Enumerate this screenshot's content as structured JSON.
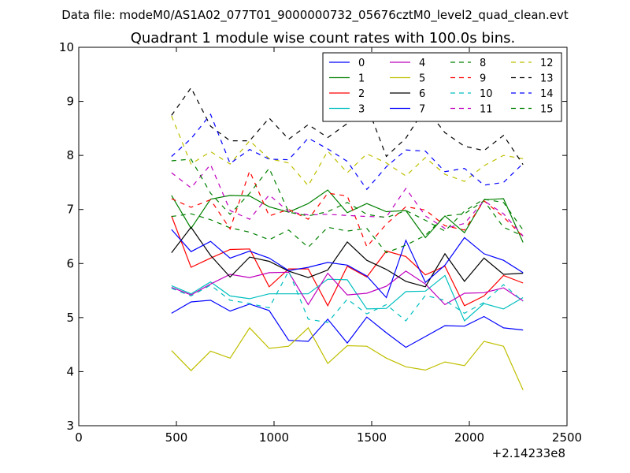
{
  "chart_data": {
    "type": "line",
    "suptitle": "Data file: modeM0/AS1A02_077T01_9000000732_05676cztM0_level2_quad_clean.evt",
    "title": "Quadrant 1 module wise count rates with 100.0s bins.",
    "xlabel": "",
    "ylabel": "",
    "x_offset_label": "+2.14233e8",
    "xlim": [
      0,
      2500
    ],
    "ylim": [
      3,
      10
    ],
    "xticks": [
      0,
      500,
      1000,
      1500,
      2000,
      2500
    ],
    "yticks": [
      3,
      4,
      5,
      6,
      7,
      8,
      9,
      10
    ],
    "grid": false,
    "legend": {
      "placement": "top-right",
      "columns": 4
    },
    "x": [
      475,
      575,
      675,
      775,
      875,
      975,
      1075,
      1175,
      1275,
      1375,
      1475,
      1575,
      1675,
      1775,
      1875,
      1975,
      2075,
      2175,
      2275
    ],
    "series": [
      {
        "name": "0",
        "color": "#0000ff",
        "dash": "solid",
        "values": [
          5.08,
          5.29,
          5.32,
          5.12,
          5.25,
          5.13,
          4.58,
          4.56,
          4.97,
          4.53,
          5.01,
          4.72,
          4.45,
          4.65,
          4.85,
          4.84,
          5.02,
          4.81,
          4.77
        ]
      },
      {
        "name": "1",
        "color": "#008000",
        "dash": "solid",
        "values": [
          7.26,
          6.65,
          7.19,
          7.26,
          7.25,
          7.05,
          6.95,
          7.11,
          7.36,
          6.94,
          7.11,
          6.96,
          6.98,
          6.48,
          6.88,
          6.57,
          7.18,
          7.2,
          6.39
        ]
      },
      {
        "name": "2",
        "color": "#ff0000",
        "dash": "solid",
        "values": [
          6.88,
          5.93,
          6.1,
          6.26,
          6.27,
          5.57,
          5.9,
          5.9,
          5.22,
          5.95,
          5.75,
          6.23,
          6.13,
          5.79,
          5.95,
          5.22,
          5.4,
          5.78,
          5.64
        ]
      },
      {
        "name": "3",
        "color": "#00bfbf",
        "dash": "solid",
        "values": [
          5.59,
          5.44,
          5.66,
          5.4,
          5.35,
          5.44,
          5.44,
          5.44,
          5.71,
          5.7,
          5.16,
          5.17,
          5.48,
          5.49,
          5.78,
          4.94,
          5.26,
          5.16,
          5.37
        ]
      },
      {
        "name": "4",
        "color": "#bf00bf",
        "dash": "solid",
        "values": [
          5.56,
          5.42,
          5.62,
          5.8,
          5.74,
          5.83,
          5.84,
          5.24,
          5.82,
          5.42,
          5.45,
          5.58,
          5.86,
          5.62,
          5.24,
          5.45,
          5.46,
          5.55,
          5.31
        ]
      },
      {
        "name": "5",
        "color": "#bfbf00",
        "dash": "solid",
        "values": [
          4.39,
          4.02,
          4.38,
          4.25,
          4.81,
          4.43,
          4.47,
          4.81,
          4.15,
          4.48,
          4.47,
          4.25,
          4.09,
          4.03,
          4.18,
          4.11,
          4.56,
          4.47,
          3.66
        ]
      },
      {
        "name": "6",
        "color": "#000000",
        "dash": "solid",
        "values": [
          6.2,
          6.67,
          6.15,
          5.75,
          6.12,
          6.04,
          5.86,
          5.74,
          5.88,
          6.4,
          6.06,
          5.89,
          5.67,
          5.57,
          6.18,
          5.67,
          6.1,
          5.8,
          5.82
        ]
      },
      {
        "name": "7",
        "color": "#0000ff",
        "dash": "solid",
        "values": [
          6.63,
          6.22,
          6.41,
          6.1,
          6.23,
          6.1,
          5.87,
          5.93,
          6.02,
          5.97,
          5.77,
          5.37,
          6.43,
          5.65,
          5.97,
          6.48,
          6.18,
          6.06,
          5.83
        ]
      },
      {
        "name": "8",
        "color": "#008000",
        "dash": "dashed",
        "values": [
          6.87,
          6.92,
          6.81,
          6.66,
          6.58,
          6.44,
          6.62,
          6.3,
          6.67,
          6.6,
          6.65,
          6.2,
          6.34,
          6.52,
          6.88,
          6.92,
          7.16,
          6.67,
          6.51
        ]
      },
      {
        "name": "9",
        "color": "#ff0000",
        "dash": "dashed",
        "values": [
          7.2,
          7.04,
          7.18,
          6.64,
          7.71,
          6.88,
          7.0,
          6.82,
          7.3,
          7.25,
          6.31,
          6.73,
          7.05,
          6.99,
          6.7,
          6.62,
          7.16,
          6.86,
          6.5
        ]
      },
      {
        "name": "10",
        "color": "#00bfbf",
        "dash": "dashed",
        "values": [
          5.54,
          5.4,
          5.6,
          5.32,
          5.26,
          5.18,
          5.86,
          4.97,
          4.91,
          5.34,
          5.07,
          5.24,
          4.94,
          5.41,
          5.32,
          5.08,
          5.28,
          5.61,
          5.3
        ]
      },
      {
        "name": "11",
        "color": "#bf00bf",
        "dash": "dashed",
        "values": [
          7.68,
          7.4,
          7.83,
          6.98,
          6.82,
          7.27,
          6.96,
          6.9,
          6.91,
          6.89,
          6.87,
          6.86,
          7.39,
          6.88,
          6.65,
          6.74,
          7.16,
          6.92,
          6.51
        ]
      },
      {
        "name": "12",
        "color": "#bfbf00",
        "dash": "dashed",
        "values": [
          8.73,
          7.84,
          8.07,
          7.84,
          8.27,
          7.94,
          7.86,
          7.44,
          8.08,
          7.68,
          8.03,
          7.86,
          7.62,
          7.96,
          7.65,
          7.52,
          7.81,
          8.0,
          7.94
        ]
      },
      {
        "name": "13",
        "color": "#000000",
        "dash": "dashed",
        "values": [
          8.74,
          9.25,
          8.54,
          8.27,
          8.27,
          8.69,
          8.3,
          8.57,
          8.33,
          8.59,
          8.93,
          7.98,
          8.32,
          8.88,
          8.42,
          8.17,
          8.09,
          8.37,
          7.83
        ]
      },
      {
        "name": "14",
        "color": "#0000ff",
        "dash": "dashed",
        "values": [
          7.98,
          8.31,
          8.76,
          7.85,
          8.11,
          7.93,
          7.92,
          8.32,
          8.12,
          7.89,
          7.37,
          7.79,
          8.1,
          8.08,
          7.7,
          7.76,
          7.45,
          7.5,
          7.85
        ]
      },
      {
        "name": "15",
        "color": "#008000",
        "dash": "dashed",
        "values": [
          7.9,
          7.93,
          7.3,
          6.91,
          7.3,
          7.76,
          6.95,
          6.88,
          6.96,
          7.13,
          6.91,
          6.85,
          6.98,
          6.8,
          6.6,
          6.97,
          7.19,
          7.13,
          6.62
        ]
      }
    ]
  }
}
